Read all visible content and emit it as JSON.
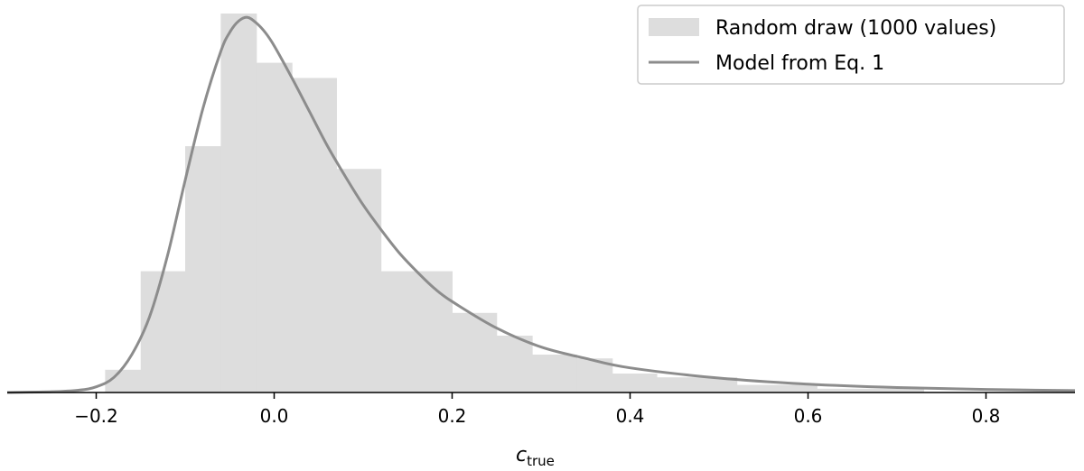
{
  "chart_data": {
    "type": "bar",
    "subtype": "histogram-with-curve",
    "xlabel": "c",
    "xlabel_subscript": "true",
    "ylabel": "",
    "title": "",
    "xlim": [
      -0.3,
      0.9
    ],
    "ylim": [
      0,
      1.0
    ],
    "y_axis_visible": false,
    "grid": false,
    "legend_position": "top-right",
    "xticks": [
      -0.2,
      0.0,
      0.2,
      0.4,
      0.6,
      0.8
    ],
    "xtick_labels": [
      "−0.2",
      "0.0",
      "0.2",
      "0.4",
      "0.6",
      "0.8"
    ],
    "colors": {
      "histogram": "#dddddd",
      "curve": "#8c8c8c",
      "axis": "#000000"
    },
    "histogram": {
      "name": "Random draw (1000 values)",
      "bin_edges": [
        -0.19,
        -0.15,
        -0.1,
        -0.06,
        -0.02,
        0.02,
        0.07,
        0.12,
        0.16,
        0.2,
        0.25,
        0.29,
        0.34,
        0.38,
        0.43,
        0.47,
        0.52,
        0.56,
        0.61,
        0.65,
        0.69,
        0.73
      ],
      "heights": [
        0.06,
        0.32,
        0.65,
        1.0,
        0.87,
        0.83,
        0.59,
        0.32,
        0.32,
        0.21,
        0.15,
        0.1,
        0.09,
        0.05,
        0.04,
        0.04,
        0.02,
        0.02,
        0.01,
        0.01,
        0.01
      ]
    },
    "curve": {
      "name": "Model from Eq. 1",
      "x": [
        -0.3,
        -0.25,
        -0.22,
        -0.2,
        -0.18,
        -0.16,
        -0.14,
        -0.12,
        -0.1,
        -0.08,
        -0.06,
        -0.05,
        -0.04,
        -0.03,
        -0.02,
        -0.01,
        0.0,
        0.02,
        0.04,
        0.06,
        0.08,
        0.1,
        0.12,
        0.14,
        0.16,
        0.18,
        0.2,
        0.25,
        0.3,
        0.35,
        0.4,
        0.5,
        0.6,
        0.7,
        0.8,
        0.9
      ],
      "y": [
        0.0,
        0.002,
        0.006,
        0.015,
        0.04,
        0.1,
        0.2,
        0.36,
        0.56,
        0.75,
        0.9,
        0.95,
        0.98,
        0.99,
        0.975,
        0.95,
        0.915,
        0.83,
        0.74,
        0.65,
        0.57,
        0.495,
        0.43,
        0.37,
        0.32,
        0.275,
        0.24,
        0.17,
        0.12,
        0.09,
        0.065,
        0.038,
        0.022,
        0.013,
        0.008,
        0.005
      ]
    }
  }
}
